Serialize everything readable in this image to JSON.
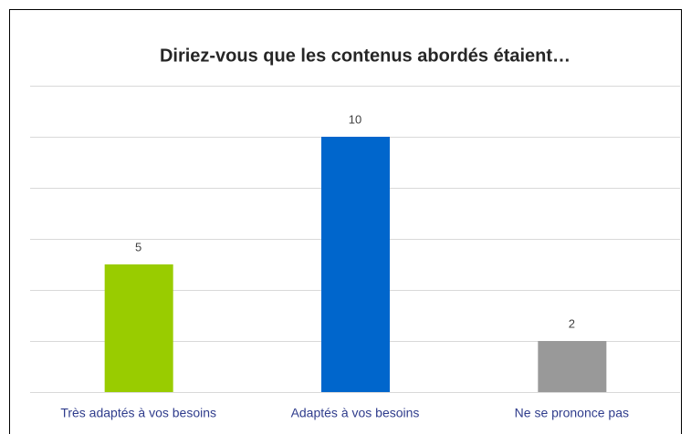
{
  "chart_data": {
    "type": "bar",
    "title": "Diriez-vous que les contenus abordés étaient…",
    "categories": [
      "Très adaptés à vos besoins",
      "Adaptés à vos besoins",
      "Ne se prononce pas"
    ],
    "values": [
      5,
      10,
      2
    ],
    "colors": [
      "#99cc00",
      "#0066cc",
      "#999999"
    ],
    "ylim": [
      0,
      12
    ],
    "yticks": [
      0,
      2,
      4,
      6,
      8,
      10,
      12
    ],
    "grid": true
  }
}
